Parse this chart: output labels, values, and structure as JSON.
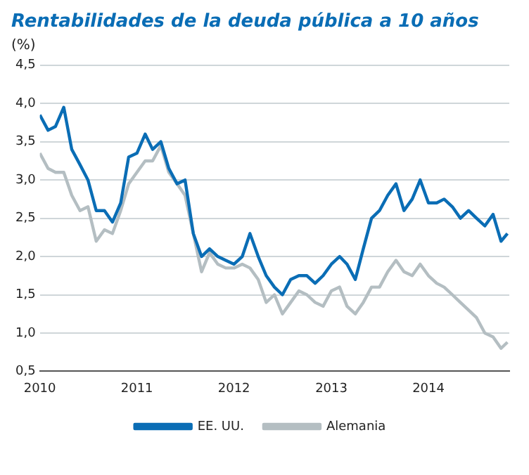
{
  "chart_data": {
    "type": "line",
    "title": "Rentabilidades de la deuda pública a 10 años",
    "ylabel": "(%)",
    "x": [
      "2010-01",
      "2010-02",
      "2010-03",
      "2010-04",
      "2010-05",
      "2010-06",
      "2010-07",
      "2010-08",
      "2010-09",
      "2010-10",
      "2010-11",
      "2010-12",
      "2011-01",
      "2011-02",
      "2011-03",
      "2011-04",
      "2011-05",
      "2011-06",
      "2011-07",
      "2011-08",
      "2011-09",
      "2011-10",
      "2011-11",
      "2011-12",
      "2012-01",
      "2012-02",
      "2012-03",
      "2012-04",
      "2012-05",
      "2012-06",
      "2012-07",
      "2012-08",
      "2012-09",
      "2012-10",
      "2012-11",
      "2012-12",
      "2013-01",
      "2013-02",
      "2013-03",
      "2013-04",
      "2013-05",
      "2013-06",
      "2013-07",
      "2013-08",
      "2013-09",
      "2013-10",
      "2013-11",
      "2013-12",
      "2014-01",
      "2014-02",
      "2014-03",
      "2014-04",
      "2014-05",
      "2014-06",
      "2014-07",
      "2014-08",
      "2014-09",
      "2014-10",
      "2014-10-25"
    ],
    "series": [
      {
        "name": "EE. UU.",
        "color": "#0a6db5",
        "values": [
          3.85,
          3.65,
          3.7,
          3.95,
          3.4,
          3.2,
          3.0,
          2.6,
          2.6,
          2.45,
          2.7,
          3.3,
          3.35,
          3.6,
          3.4,
          3.5,
          3.15,
          2.95,
          3.0,
          2.3,
          2.0,
          2.1,
          2.0,
          1.95,
          1.9,
          2.0,
          2.3,
          2.0,
          1.75,
          1.6,
          1.5,
          1.7,
          1.75,
          1.75,
          1.65,
          1.75,
          1.9,
          2.0,
          1.9,
          1.7,
          2.1,
          2.5,
          2.6,
          2.8,
          2.95,
          2.6,
          2.75,
          3.0,
          2.7,
          2.7,
          2.75,
          2.65,
          2.5,
          2.6,
          2.5,
          2.4,
          2.55,
          2.2,
          2.3
        ]
      },
      {
        "name": "Alemania",
        "color": "#b4bec2",
        "values": [
          3.35,
          3.15,
          3.1,
          3.1,
          2.8,
          2.6,
          2.65,
          2.2,
          2.35,
          2.3,
          2.6,
          2.95,
          3.1,
          3.25,
          3.25,
          3.45,
          3.1,
          2.95,
          2.8,
          2.3,
          1.8,
          2.05,
          1.9,
          1.85,
          1.85,
          1.9,
          1.85,
          1.7,
          1.4,
          1.5,
          1.25,
          1.4,
          1.55,
          1.5,
          1.4,
          1.35,
          1.55,
          1.6,
          1.35,
          1.25,
          1.4,
          1.6,
          1.6,
          1.8,
          1.95,
          1.8,
          1.75,
          1.9,
          1.75,
          1.65,
          1.6,
          1.5,
          1.4,
          1.3,
          1.2,
          1.0,
          0.95,
          0.8,
          0.88
        ]
      }
    ],
    "xlim": [
      "2010-01-01",
      "2014-11-01"
    ],
    "xticks": [
      "2010",
      "2011",
      "2012",
      "2013",
      "2014"
    ],
    "ylim": [
      0.5,
      4.5
    ],
    "yticks": [
      {
        "value": 0.5,
        "label": "0,5"
      },
      {
        "value": 1,
        "label": "1,0"
      },
      {
        "value": 1.5,
        "label": "1,5"
      },
      {
        "value": 2,
        "label": "2,0"
      },
      {
        "value": 2.5,
        "label": "2,5"
      },
      {
        "value": 3,
        "label": "3,0"
      },
      {
        "value": 3.5,
        "label": "3,5"
      },
      {
        "value": 4,
        "label": "4,0"
      },
      {
        "value": 4.5,
        "label": "4,5"
      }
    ],
    "grid": "y",
    "legend": "bottom",
    "marker": "none",
    "line_style": "solid"
  }
}
